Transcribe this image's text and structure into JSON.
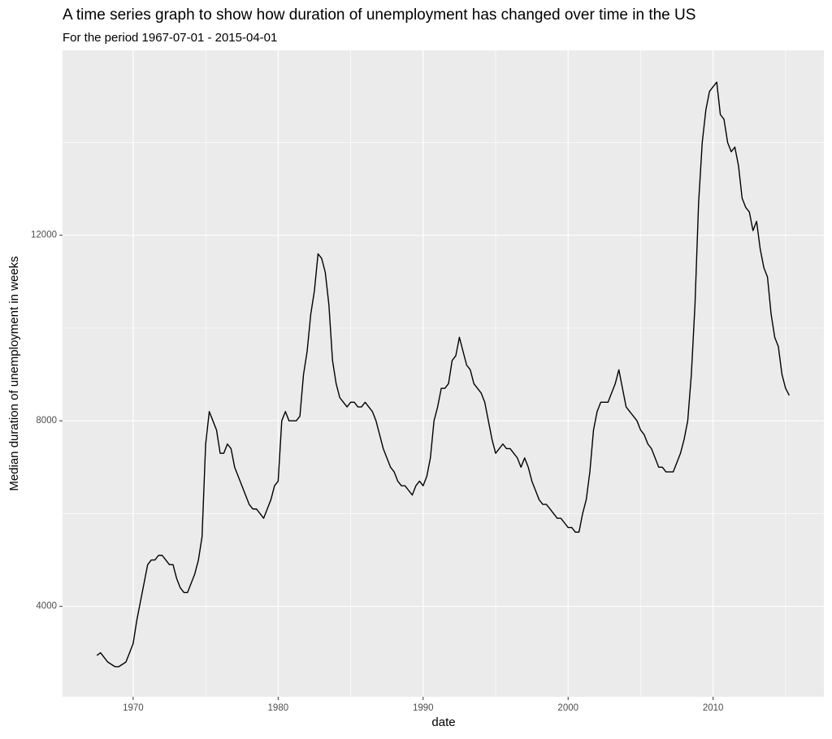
{
  "chart_data": {
    "type": "line",
    "title": "A time series graph to show how duration of unemployment has changed over time in the US",
    "subtitle": "For the period  1967-07-01  -  2015-04-01",
    "x_label": "date",
    "y_label": "Median duration of unemployment in weeks",
    "color": "#000000",
    "grid": true,
    "xlim": [
      1965.13,
      2017.64
    ],
    "ylim": [
      2052,
      15985
    ],
    "xticks": [
      1970,
      1980,
      1990,
      2000,
      2010
    ],
    "yticks": [
      4000,
      8000,
      12000
    ],
    "xminor": [
      1975,
      1985,
      1995,
      2005,
      2015
    ],
    "yminor": [
      6000,
      10000,
      14000
    ],
    "x": [
      1967.5,
      1967.75,
      1968,
      1968.25,
      1968.5,
      1968.75,
      1969,
      1969.25,
      1969.5,
      1969.75,
      1970,
      1970.25,
      1970.5,
      1970.75,
      1971,
      1971.25,
      1971.5,
      1971.75,
      1972,
      1972.25,
      1972.5,
      1972.75,
      1973,
      1973.25,
      1973.5,
      1973.75,
      1974,
      1974.25,
      1974.5,
      1974.75,
      1975,
      1975.25,
      1975.5,
      1975.75,
      1976,
      1976.25,
      1976.5,
      1976.75,
      1977,
      1977.25,
      1977.5,
      1977.75,
      1978,
      1978.25,
      1978.5,
      1978.75,
      1979,
      1979.25,
      1979.5,
      1979.75,
      1980,
      1980.25,
      1980.5,
      1980.75,
      1981,
      1981.25,
      1981.5,
      1981.75,
      1982,
      1982.25,
      1982.5,
      1982.75,
      1983,
      1983.25,
      1983.5,
      1983.75,
      1984,
      1984.25,
      1984.5,
      1984.75,
      1985,
      1985.25,
      1985.5,
      1985.75,
      1986,
      1986.25,
      1986.5,
      1986.75,
      1987,
      1987.25,
      1987.5,
      1987.75,
      1988,
      1988.25,
      1988.5,
      1988.75,
      1989,
      1989.25,
      1989.5,
      1989.75,
      1990,
      1990.25,
      1990.5,
      1990.75,
      1991,
      1991.25,
      1991.5,
      1991.75,
      1992,
      1992.25,
      1992.5,
      1992.75,
      1993,
      1993.25,
      1993.5,
      1993.75,
      1994,
      1994.25,
      1994.5,
      1994.75,
      1995,
      1995.25,
      1995.5,
      1995.75,
      1996,
      1996.25,
      1996.5,
      1996.75,
      1997,
      1997.25,
      1997.5,
      1997.75,
      1998,
      1998.25,
      1998.5,
      1998.75,
      1999,
      1999.25,
      1999.5,
      1999.75,
      2000,
      2000.25,
      2000.5,
      2000.75,
      2001,
      2001.25,
      2001.5,
      2001.75,
      2002,
      2002.25,
      2002.5,
      2002.75,
      2003,
      2003.25,
      2003.5,
      2003.75,
      2004,
      2004.25,
      2004.5,
      2004.75,
      2005,
      2005.25,
      2005.5,
      2005.75,
      2006,
      2006.25,
      2006.5,
      2006.75,
      2007,
      2007.25,
      2007.5,
      2007.75,
      2008,
      2008.25,
      2008.5,
      2008.75,
      2009,
      2009.25,
      2009.5,
      2009.75,
      2010,
      2010.25,
      2010.5,
      2010.75,
      2011,
      2011.25,
      2011.5,
      2011.75,
      2012,
      2012.25,
      2012.5,
      2012.75,
      2013,
      2013.25,
      2013.5,
      2013.75,
      2014,
      2014.25,
      2014.5,
      2014.75,
      2015,
      2015.25
    ],
    "values": [
      2944,
      3000,
      2900,
      2800,
      2750,
      2700,
      2700,
      2750,
      2800,
      3000,
      3200,
      3700,
      4100,
      4500,
      4900,
      5000,
      5000,
      5100,
      5100,
      5000,
      4900,
      4900,
      4600,
      4400,
      4300,
      4300,
      4500,
      4700,
      5000,
      5500,
      7500,
      8200,
      8000,
      7800,
      7300,
      7300,
      7500,
      7400,
      7000,
      6800,
      6600,
      6400,
      6200,
      6100,
      6100,
      6000,
      5900,
      6100,
      6300,
      6600,
      6700,
      8000,
      8200,
      8000,
      8000,
      8000,
      8100,
      9000,
      9500,
      10300,
      10800,
      11600,
      11500,
      11200,
      10500,
      9300,
      8800,
      8500,
      8400,
      8300,
      8400,
      8400,
      8300,
      8300,
      8400,
      8300,
      8200,
      8000,
      7700,
      7400,
      7200,
      7000,
      6900,
      6700,
      6600,
      6600,
      6500,
      6400,
      6600,
      6700,
      6600,
      6800,
      7200,
      8000,
      8300,
      8700,
      8700,
      8800,
      9300,
      9400,
      9800,
      9500,
      9200,
      9100,
      8800,
      8700,
      8600,
      8400,
      8000,
      7600,
      7300,
      7400,
      7500,
      7400,
      7400,
      7300,
      7200,
      7000,
      7200,
      7000,
      6700,
      6500,
      6300,
      6200,
      6200,
      6100,
      6000,
      5900,
      5900,
      5800,
      5700,
      5700,
      5600,
      5600,
      6000,
      6300,
      6900,
      7800,
      8200,
      8400,
      8400,
      8400,
      8600,
      8800,
      9100,
      8700,
      8300,
      8200,
      8100,
      8000,
      7800,
      7700,
      7500,
      7400,
      7200,
      7000,
      7000,
      6900,
      6900,
      6900,
      7100,
      7300,
      7600,
      8000,
      9000,
      10500,
      12700,
      14000,
      14700,
      15100,
      15200,
      15300,
      14600,
      14500,
      14000,
      13800,
      13900,
      13500,
      12800,
      12600,
      12500,
      12100,
      12300,
      11700,
      11300,
      11100,
      10300,
      9800,
      9600,
      9000,
      8700,
      8549
    ]
  }
}
